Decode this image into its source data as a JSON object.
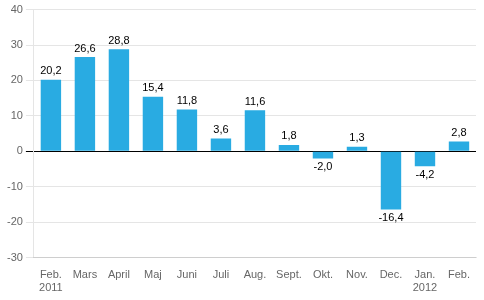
{
  "chart_data": {
    "type": "bar",
    "categories": [
      "Feb.\n2011",
      "Mars",
      "April",
      "Maj",
      "Juni",
      "Juli",
      "Aug.",
      "Sept.",
      "Okt.",
      "Nov.",
      "Dec.",
      "Jan.\n2012",
      "Feb."
    ],
    "values": [
      20.2,
      26.6,
      28.8,
      15.4,
      11.8,
      3.6,
      11.6,
      1.8,
      -2.0,
      1.3,
      -16.4,
      -4.2,
      2.8
    ],
    "value_labels": [
      "20,2",
      "26,6",
      "28,8",
      "15,4",
      "11,8",
      "3,6",
      "11,6",
      "1,8",
      "-2,0",
      "1,3",
      "-16,4",
      "-4,2",
      "2,8"
    ],
    "data_labels": true,
    "color": "#29abe2",
    "ylim": [
      -30,
      40
    ],
    "yticks": [
      -30,
      -20,
      -10,
      0,
      10,
      20,
      30,
      40
    ],
    "grid": true
  }
}
